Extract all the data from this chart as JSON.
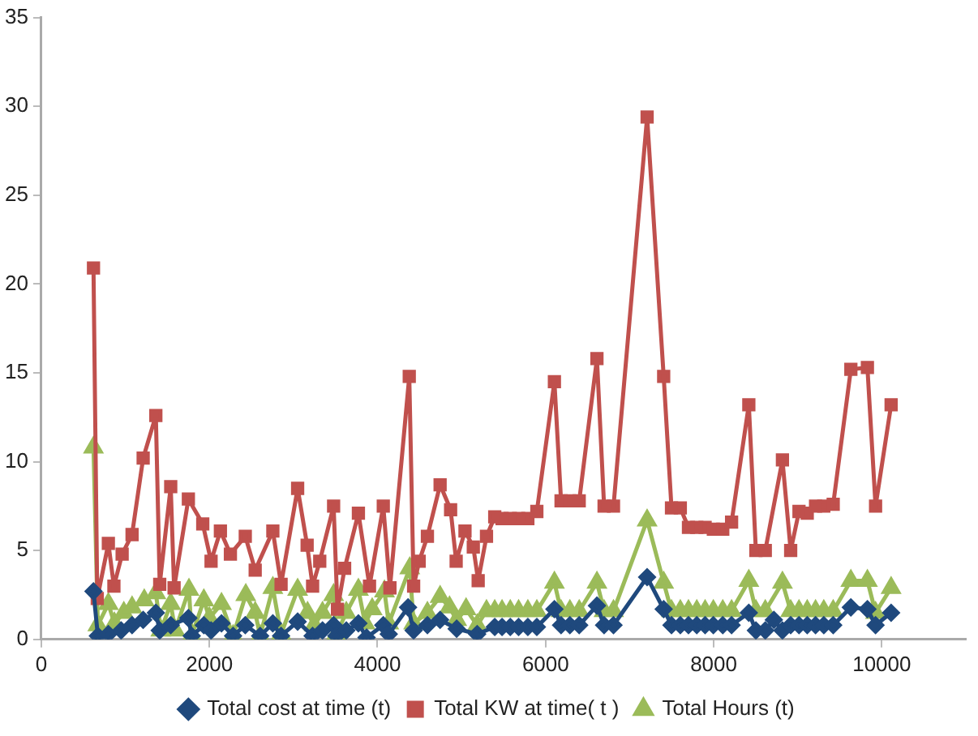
{
  "chart_data": {
    "type": "line",
    "xlim": [
      0,
      11000
    ],
    "xticks": [
      0,
      2000,
      4000,
      6000,
      8000,
      10000
    ],
    "ylim": [
      0,
      35
    ],
    "yticks": [
      0,
      5,
      10,
      15,
      20,
      25,
      30,
      35
    ],
    "grid": false,
    "legend": "bottom",
    "series": [
      {
        "name": "Total cost at time (t)",
        "color": "#1f497d",
        "marker": "diamond",
        "x": [
          621,
          673,
          798,
          950,
          1080,
          1212,
          1363,
          1409,
          1540,
          1750,
          1790,
          1934,
          2020,
          2144,
          2282,
          2427,
          2604,
          2755,
          2853,
          3050,
          3228,
          3346,
          3478,
          3511,
          3629,
          3773,
          3870,
          4069,
          4134,
          4364,
          4430,
          4594,
          4745,
          4942,
          5186,
          5395,
          5482,
          5580,
          5679,
          5789,
          5896,
          6105,
          6184,
          6289,
          6400,
          6611,
          6696,
          6808,
          7208,
          7405,
          7498,
          7603,
          7700,
          7799,
          7898,
          7996,
          8108,
          8213,
          8418,
          8502,
          8614,
          8716,
          8818,
          8916,
          9015,
          9113,
          9212,
          9310,
          9422,
          9632,
          9829,
          9926,
          10111
        ],
        "values": [
          2.7,
          0.2,
          0.3,
          0.5,
          0.8,
          1.1,
          1.5,
          0.5,
          0.8,
          1.2,
          0.2,
          0.8,
          0.5,
          0.9,
          0.2,
          0.8,
          0.2,
          0.9,
          0.2,
          1.0,
          0.2,
          0.5,
          0.8,
          0.2,
          0.5,
          0.9,
          0.1,
          0.8,
          0.3,
          1.8,
          0.5,
          0.8,
          1.1,
          0.6,
          0.3,
          0.7,
          0.7,
          0.7,
          0.7,
          0.7,
          0.7,
          1.7,
          0.8,
          0.8,
          0.8,
          1.9,
          0.8,
          0.8,
          3.5,
          1.7,
          0.8,
          0.8,
          0.8,
          0.8,
          0.8,
          0.8,
          0.8,
          0.8,
          1.5,
          0.5,
          0.5,
          1.1,
          0.5,
          0.8,
          0.8,
          0.8,
          0.8,
          0.8,
          0.8,
          1.8,
          1.7,
          0.8,
          1.5
        ]
      },
      {
        "name": "Total KW at time( t )",
        "color": "#c0504d",
        "marker": "square",
        "x": [
          621,
          666,
          798,
          864,
          962,
          1080,
          1212,
          1363,
          1409,
          1540,
          1580,
          1750,
          1921,
          2020,
          2131,
          2250,
          2427,
          2545,
          2755,
          2853,
          3050,
          3163,
          3228,
          3313,
          3478,
          3524,
          3609,
          3773,
          3905,
          4069,
          4148,
          4378,
          4430,
          4496,
          4594,
          4745,
          4870,
          4936,
          5041,
          5140,
          5198,
          5297,
          5395,
          5482,
          5580,
          5679,
          5789,
          5896,
          6105,
          6184,
          6289,
          6400,
          6611,
          6696,
          6808,
          7208,
          7405,
          7498,
          7603,
          7700,
          7799,
          7898,
          7996,
          8108,
          8213,
          8418,
          8502,
          8614,
          8818,
          8916,
          9015,
          9113,
          9212,
          9310,
          9422,
          9632,
          9829,
          9926,
          10111
        ],
        "values": [
          20.9,
          2.3,
          5.4,
          3.0,
          4.8,
          5.9,
          10.2,
          12.6,
          3.1,
          8.6,
          2.9,
          7.9,
          6.5,
          4.4,
          6.1,
          4.8,
          5.8,
          3.9,
          6.1,
          3.1,
          8.5,
          5.3,
          3.0,
          4.4,
          7.5,
          1.7,
          4.0,
          7.1,
          3.0,
          7.5,
          2.9,
          14.8,
          3.0,
          4.4,
          5.8,
          8.7,
          7.3,
          4.4,
          6.1,
          5.2,
          3.3,
          5.8,
          6.9,
          6.8,
          6.8,
          6.8,
          6.8,
          7.2,
          14.5,
          7.8,
          7.8,
          7.8,
          15.8,
          7.5,
          7.5,
          29.4,
          14.8,
          7.4,
          7.4,
          6.3,
          6.3,
          6.3,
          6.2,
          6.2,
          6.6,
          13.2,
          5.0,
          5.0,
          10.1,
          5.0,
          7.2,
          7.1,
          7.5,
          7.5,
          7.6,
          15.2,
          15.3,
          7.5,
          13.2
        ]
      },
      {
        "name": "Total Hours (t)",
        "color": "#9bbb59",
        "marker": "triangle",
        "x": [
          621,
          673,
          798,
          870,
          982,
          1080,
          1225,
          1363,
          1422,
          1540,
          1593,
          1757,
          1790,
          1934,
          2000,
          2144,
          2282,
          2433,
          2545,
          2604,
          2755,
          2853,
          3050,
          3168,
          3247,
          3346,
          3478,
          3511,
          3629,
          3773,
          3852,
          3937,
          4083,
          4134,
          4384,
          4430,
          4594,
          4745,
          4857,
          4942,
          5054,
          5186,
          5297,
          5395,
          5482,
          5580,
          5679,
          5789,
          5896,
          6105,
          6184,
          6289,
          6400,
          6611,
          6696,
          6808,
          7208,
          7405,
          7498,
          7603,
          7700,
          7799,
          7898,
          7996,
          8108,
          8213,
          8418,
          8502,
          8614,
          8818,
          8916,
          9015,
          9113,
          9212,
          9310,
          9422,
          9632,
          9829,
          9926,
          10111
        ],
        "values": [
          10.8,
          0.8,
          2.0,
          0.9,
          1.5,
          1.8,
          2.2,
          2.6,
          0.5,
          2.0,
          0.5,
          2.8,
          0.2,
          2.2,
          1.2,
          2.0,
          0.2,
          2.5,
          1.5,
          0.2,
          2.9,
          0.3,
          2.8,
          1.5,
          0.8,
          1.5,
          2.5,
          0.3,
          1.5,
          2.8,
          0.9,
          1.7,
          2.7,
          0.9,
          4.0,
          0.9,
          1.5,
          2.4,
          1.8,
          1.1,
          1.7,
          0.8,
          1.6,
          1.6,
          1.6,
          1.6,
          1.6,
          1.6,
          1.6,
          3.2,
          1.6,
          1.6,
          1.6,
          3.2,
          1.6,
          1.6,
          6.7,
          3.2,
          1.6,
          1.6,
          1.6,
          1.6,
          1.6,
          1.6,
          1.6,
          1.6,
          3.3,
          1.6,
          1.6,
          3.2,
          1.6,
          1.6,
          1.6,
          1.6,
          1.6,
          1.6,
          3.3,
          3.3,
          1.5,
          2.9
        ]
      }
    ]
  }
}
